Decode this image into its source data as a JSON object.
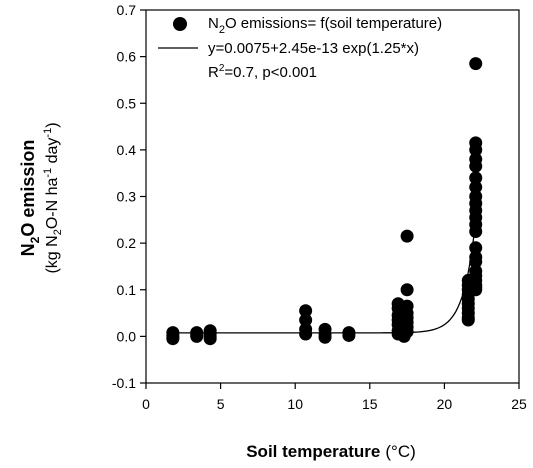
{
  "chart_data": {
    "type": "scatter",
    "xlabel": {
      "bold": "Soil temperature",
      "unit": "(°C)"
    },
    "ylabel": {
      "main_pre": "N",
      "main_sub": "2",
      "main_post": "O emission",
      "u1": "(kg N",
      "u_sub": "2",
      "u2": "O-N ha",
      "u_sup1": "-1",
      "u3": " day",
      "u_sup2": "-1",
      "u4": ")"
    },
    "xlim": [
      0,
      25
    ],
    "ylim": [
      -0.1,
      0.7
    ],
    "xticks": [
      "0",
      "5",
      "10",
      "15",
      "20",
      "25"
    ],
    "yticks": [
      "-0.1",
      "0.0",
      "0.1",
      "0.2",
      "0.3",
      "0.4",
      "0.5",
      "0.6",
      "0.7"
    ],
    "legend_position": "top",
    "legend": {
      "points": {
        "pre": "N",
        "sub": "2",
        "post": "O emissions= f(soil temperature)"
      },
      "fit": "y=0.0075+2.45e-13 exp(1.25*x)",
      "stats_pre": "R",
      "stats_sup": "2",
      "stats_post": "=0.7, p<0.001"
    },
    "fit": {
      "a": 0.0075,
      "b": 2.45e-13,
      "c": 1.25,
      "x_range": [
        1.8,
        22.2
      ]
    },
    "series": [
      {
        "x": [
          1.8,
          1.8,
          1.8,
          1.8,
          3.4,
          3.4,
          3.4,
          4.3,
          4.3,
          4.3,
          4.3,
          10.7,
          10.7,
          10.7,
          10.7,
          12.0,
          12.0,
          12.0,
          13.6,
          13.6,
          16.9,
          16.9,
          16.9,
          16.9,
          16.9,
          16.9,
          16.9,
          17.3,
          17.3,
          17.3,
          17.3,
          17.3,
          17.5,
          17.5,
          17.5,
          17.5,
          17.5,
          17.5,
          17.5,
          17.5,
          21.6,
          21.6,
          21.6,
          21.6,
          21.6,
          21.6,
          21.6,
          21.6,
          21.6,
          21.6,
          22.1,
          22.1,
          22.1,
          22.1,
          22.1,
          22.1,
          22.1,
          22.1,
          22.1,
          22.1,
          22.1,
          22.1,
          22.1,
          22.1,
          22.1,
          22.1,
          22.1,
          22.1,
          22.1,
          22.1,
          22.1,
          22.1
        ],
        "y": [
          0.008,
          0.003,
          -0.002,
          -0.005,
          0.008,
          0.003,
          0.0,
          0.012,
          0.006,
          0.0,
          -0.005,
          0.055,
          0.035,
          0.015,
          0.005,
          0.015,
          0.005,
          -0.002,
          0.008,
          0.002,
          0.07,
          0.06,
          0.045,
          0.035,
          0.025,
          0.012,
          0.005,
          0.055,
          0.04,
          0.02,
          0.01,
          0.0,
          0.215,
          0.1,
          0.065,
          0.05,
          0.04,
          0.03,
          0.02,
          0.01,
          0.12,
          0.11,
          0.1,
          0.09,
          0.08,
          0.07,
          0.06,
          0.05,
          0.04,
          0.035,
          0.585,
          0.415,
          0.4,
          0.38,
          0.365,
          0.34,
          0.32,
          0.3,
          0.285,
          0.27,
          0.255,
          0.24,
          0.225,
          0.19,
          0.17,
          0.16,
          0.14,
          0.13,
          0.12,
          0.11,
          0.105,
          0.1
        ]
      }
    ]
  }
}
